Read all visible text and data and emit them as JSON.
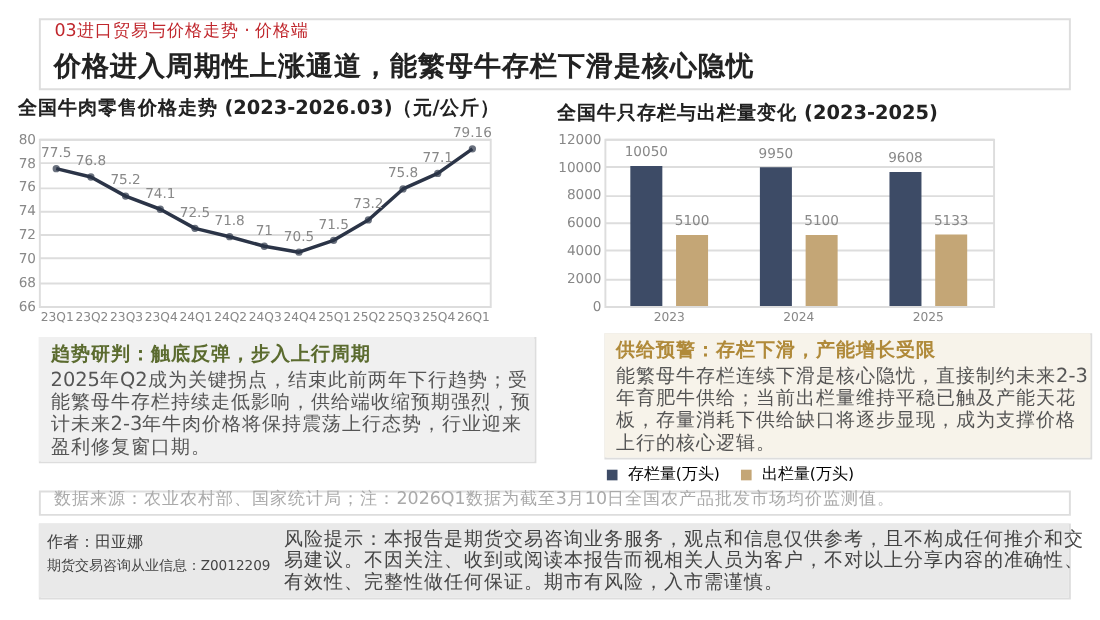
{
  "chart_data": [
    {
      "type": "line",
      "title": "全国牛肉零售价格走势 (2023-2026.03)（元/公斤）",
      "categories": [
        "23Q1",
        "23Q2",
        "23Q3",
        "23Q4",
        "24Q1",
        "24Q2",
        "24Q3",
        "24Q4",
        "25Q1",
        "25Q2",
        "25Q3",
        "25Q4",
        "26Q1"
      ],
      "series": [
        {
          "color": "#2b3447",
          "values": [
            77.5,
            76.8,
            75.2,
            74.1,
            72.5,
            71.8,
            71,
            70.5,
            71.5,
            73.2,
            75.8,
            77.1,
            79.16
          ]
        }
      ],
      "ylim": [
        66,
        80
      ],
      "yticks": [
        66,
        68,
        70,
        72,
        74,
        76,
        78,
        80
      ],
      "grid": "y",
      "marker": "circle",
      "data_labels": true,
      "annotations": [
        "03进口贸易与价格走势 · 价格端",
        "价格进入周期性上涨通道，能繁母牛存栏下滑是核心隐忧",
        "趋势研判：触底反弹，步入上行周期",
        "2025年Q2成为关键拐点，结束此前两年下行趋势；受能繁母牛存栏持续走低影响，供给端收缩预期强烈，预计未来2-3年牛肉价格将保持震荡上行态势，行业迎来盈利修复窗口期。"
      ]
    },
    {
      "type": "bar",
      "title": "全国牛只存栏与出栏量变化 (2023-2025)",
      "categories": [
        "2023",
        "2024",
        "2025"
      ],
      "series": [
        {
          "name": "存栏量(万头)",
          "color": "#3d4b66",
          "values": [
            10050,
            9950,
            9608
          ]
        },
        {
          "name": "出栏量(万头)",
          "color": "#c4a676",
          "values": [
            5100,
            5100,
            5133
          ]
        }
      ],
      "ylim": [
        0,
        12000
      ],
      "yticks": [
        0,
        2000,
        4000,
        6000,
        8000,
        10000,
        12000
      ],
      "grid": "y",
      "legend": "bottom",
      "data_labels": true,
      "annotations": [
        "供给预警：存栏下滑，产能增长受限",
        "能繁母牛存栏连续下滑是核心隐忧，直接制约未来2-3年育肥牛供给；当前出栏量维持平稳已触及产能天花板，存量消耗下供给缺口将逐步显现，成为支撑价格上行的核心逻辑。",
        "数据来源：农业农村部、国家统计局；注：2026Q1数据为截至3月10日全国农产品批发市场均价监测值。",
        "作者：田亚娜",
        "期货交易咨询从业信息：Z0012209",
        "风险提示：本报告是期货交易咨询业务服务，观点和信息仅供参考，且不构成任何推介和交易建议。不因关注、收到或阅读本报告而视相关人员为客户，不对以上分享内容的准确性、有效性、完整性做任何保证。期市有风险，入市需谨慎。"
      ]
    }
  ]
}
